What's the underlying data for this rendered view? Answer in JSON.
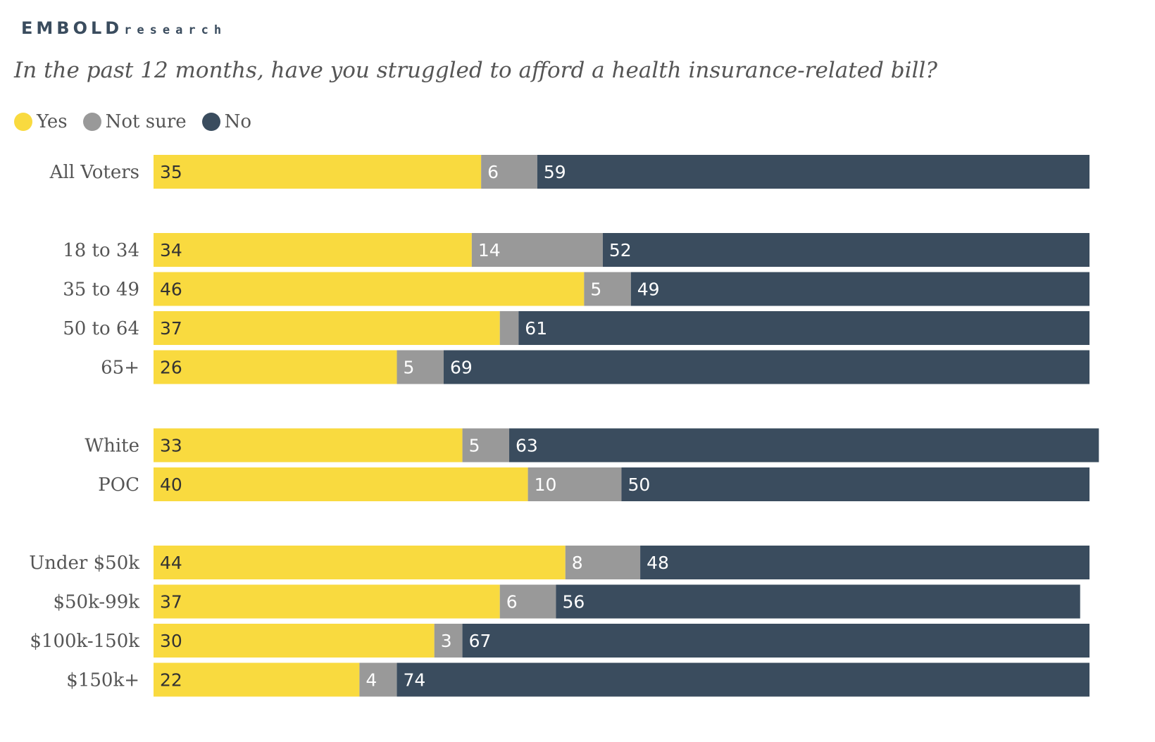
{
  "brand": {
    "name": "EMBOLD",
    "sub": "research"
  },
  "chart_data": {
    "type": "bar",
    "stacked": true,
    "orientation": "horizontal",
    "title": "In the past 12 months, have you struggled to afford a health insurance-related bill?",
    "legend_position": "top-left",
    "xlim": [
      0,
      100
    ],
    "colors": {
      "Yes": "#f9da3f",
      "Not sure": "#999999",
      "No": "#3a4c5e"
    },
    "groups": [
      [
        "All Voters"
      ],
      [
        "18 to 34",
        "35 to 49",
        "50 to 64",
        "65+"
      ],
      [
        "White",
        "POC"
      ],
      [
        "Under $50k",
        "$50k-99k",
        "$100k-150k",
        "$150k+"
      ]
    ],
    "categories": [
      "All Voters",
      "18 to 34",
      "35 to 49",
      "50 to 64",
      "65+",
      "White",
      "POC",
      "Under $50k",
      "$50k-99k",
      "$100k-150k",
      "$150k+"
    ],
    "series": [
      {
        "name": "Yes",
        "values": [
          35,
          34,
          46,
          37,
          26,
          33,
          40,
          44,
          37,
          30,
          22
        ]
      },
      {
        "name": "Not sure",
        "values": [
          6,
          14,
          5,
          2,
          5,
          5,
          10,
          8,
          6,
          3,
          4
        ]
      },
      {
        "name": "No",
        "values": [
          59,
          52,
          49,
          61,
          69,
          63,
          50,
          48,
          56,
          67,
          74
        ]
      }
    ],
    "labels": [
      [
        "35",
        "6",
        "59"
      ],
      [
        "34",
        "14",
        "52"
      ],
      [
        "46",
        "5",
        "49"
      ],
      [
        "37",
        "",
        "61"
      ],
      [
        "26",
        "5",
        "69"
      ],
      [
        "33",
        "5",
        "63"
      ],
      [
        "40",
        "10",
        "50"
      ],
      [
        "44",
        "8",
        "48"
      ],
      [
        "37",
        "6",
        "56"
      ],
      [
        "30",
        "3",
        "67"
      ],
      [
        "22",
        "4",
        "74"
      ]
    ]
  }
}
